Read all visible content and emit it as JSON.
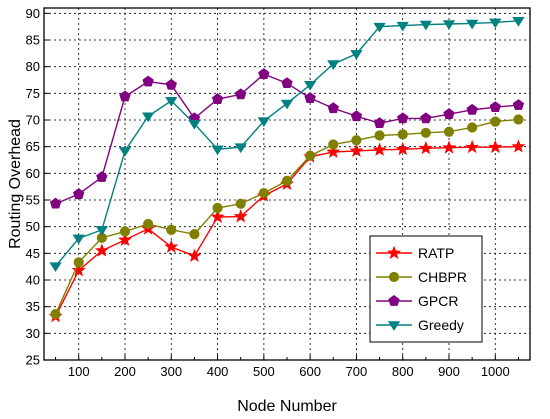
{
  "chart_data": {
    "type": "line",
    "xlabel": "Node Number",
    "ylabel": "Routing Overhead",
    "xlim": [
      25,
      1075
    ],
    "ylim": [
      25,
      91
    ],
    "xticks": [
      100,
      200,
      300,
      400,
      500,
      600,
      700,
      800,
      900,
      1000
    ],
    "yticks": [
      25,
      30,
      35,
      40,
      45,
      50,
      55,
      60,
      65,
      70,
      75,
      80,
      85,
      90
    ],
    "grid": true,
    "legend_position": "bottom-right",
    "x": [
      50,
      100,
      150,
      200,
      250,
      300,
      350,
      400,
      450,
      500,
      550,
      600,
      650,
      700,
      750,
      800,
      850,
      900,
      950,
      1000,
      1050
    ],
    "series": [
      {
        "name": "RATP",
        "color": "#ff0000",
        "marker": "star",
        "values": [
          33.2,
          41.8,
          45.5,
          47.5,
          49.6,
          46.2,
          44.5,
          51.8,
          51.9,
          55.8,
          58.0,
          63.1,
          64.0,
          64.2,
          64.4,
          64.5,
          64.7,
          64.8,
          64.9,
          64.9,
          65.0
        ]
      },
      {
        "name": "CHBPR",
        "color": "#808000",
        "marker": "circle",
        "values": [
          33.6,
          43.3,
          47.9,
          49.1,
          50.5,
          49.4,
          48.6,
          53.5,
          54.3,
          56.3,
          58.6,
          63.3,
          65.4,
          66.2,
          67.1,
          67.3,
          67.6,
          67.8,
          68.6,
          69.7,
          70.1
        ]
      },
      {
        "name": "GPCR",
        "color": "#800080",
        "marker": "pentagon",
        "values": [
          54.3,
          56.1,
          59.3,
          74.4,
          77.2,
          76.6,
          70.3,
          73.9,
          74.8,
          78.6,
          76.9,
          74.1,
          72.2,
          70.7,
          69.4,
          70.3,
          70.3,
          71.1,
          71.9,
          72.4,
          72.8
        ]
      },
      {
        "name": "Greedy",
        "color": "#008080",
        "marker": "triangle-down",
        "values": [
          42.6,
          47.8,
          49.4,
          64.2,
          70.7,
          73.6,
          69.3,
          64.5,
          64.9,
          69.8,
          73.1,
          76.6,
          80.5,
          82.4,
          87.5,
          87.7,
          87.9,
          88.0,
          88.1,
          88.3,
          88.6
        ]
      }
    ]
  }
}
